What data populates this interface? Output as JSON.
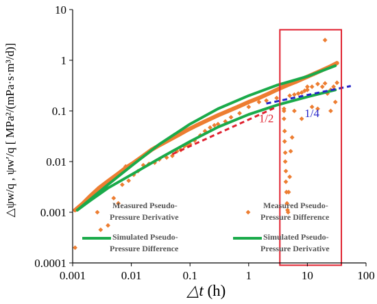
{
  "chart_data": {
    "type": "scatter",
    "x_axis": {
      "label_symbol": "△t",
      "label_unit": " (h)",
      "scale": "log",
      "range": [
        0.001,
        100
      ],
      "tick_labels": [
        "0.001",
        "0.01",
        "0.1",
        "1",
        "10",
        "100"
      ]
    },
    "y_axis": {
      "label": "△ψw/q , ψw′/q [ MPa²/(mPa·s·m³/d)]",
      "scale": "log",
      "range": [
        0.0001,
        10
      ],
      "tick_labels": [
        "0.0001",
        "0.001",
        "0.01",
        "0.1",
        "1",
        "10"
      ]
    },
    "colors": {
      "measured": "#ED7D31",
      "simulated": "#1AAA4A",
      "half_slope": "#E0202E",
      "quarter_slope": "#2323C8",
      "highlight_box": "#E0202E"
    },
    "series": [
      {
        "name": "Measured Pseudo-Pressure Difference",
        "kind": "markers",
        "x": [
          0.0011,
          0.0015,
          0.002,
          0.0028,
          0.004,
          0.006,
          0.008,
          0.011,
          0.016,
          0.022,
          0.03,
          0.045,
          0.065,
          0.09,
          0.13,
          0.2,
          0.3,
          0.45,
          0.65,
          1.0,
          1.5,
          2.2,
          3.2,
          4.5,
          6.5,
          9.0,
          13.0,
          18.0,
          25.0,
          32.0
        ],
        "y": [
          0.0011,
          0.0015,
          0.0021,
          0.003,
          0.0041,
          0.0058,
          0.0075,
          0.0095,
          0.013,
          0.017,
          0.021,
          0.027,
          0.034,
          0.042,
          0.052,
          0.066,
          0.082,
          0.1,
          0.12,
          0.15,
          0.18,
          0.22,
          0.27,
          0.32,
          0.38,
          0.45,
          0.54,
          0.64,
          0.76,
          0.88
        ]
      },
      {
        "name": "Measured Pseudo-Pressure Derivative",
        "kind": "markers",
        "x": [
          0.0011,
          0.003,
          0.004,
          0.005,
          0.006,
          0.007,
          0.008,
          0.009,
          0.011,
          0.013,
          0.016,
          0.02,
          0.025,
          0.03,
          0.04,
          0.05,
          0.06,
          0.07,
          0.08,
          0.09,
          0.1,
          0.12,
          0.15,
          0.18,
          0.22,
          0.26,
          0.3,
          0.4,
          0.5,
          0.7,
          1.0,
          1.5,
          2.0,
          3.0,
          4.0,
          5.0,
          6.0,
          7.0,
          8.0,
          9.0,
          10.0,
          12.0,
          15.0,
          18.0,
          22.0,
          25.0,
          28.0,
          32.0,
          20.0,
          4.0,
          4.0,
          4.1,
          4.1,
          4.2,
          4.2,
          4.3,
          4.3,
          4.4,
          4.5,
          4.6,
          4.7,
          4.8,
          5.0,
          5.2,
          5.5,
          6.0,
          8.0,
          10.0,
          12.0,
          15.0,
          20.0,
          25.0,
          30.0
        ],
        "y": [
          0.0002,
          0.00045,
          0.00055,
          0.0019,
          0.0015,
          0.0035,
          0.008,
          0.0042,
          0.0055,
          0.0065,
          0.0085,
          0.009,
          0.0095,
          0.011,
          0.012,
          0.013,
          0.016,
          0.017,
          0.02,
          0.021,
          0.022,
          0.026,
          0.033,
          0.04,
          0.047,
          0.052,
          0.055,
          0.062,
          0.075,
          0.09,
          0.12,
          0.15,
          0.16,
          0.18,
          0.11,
          0.2,
          0.21,
          0.22,
          0.23,
          0.25,
          0.26,
          0.3,
          0.34,
          0.3,
          0.22,
          0.26,
          0.3,
          0.36,
          2.5,
          0.1,
          0.07,
          0.04,
          0.025,
          0.015,
          0.01,
          0.0065,
          0.004,
          0.0025,
          0.0015,
          0.0011,
          0.001,
          0.0025,
          0.005,
          0.016,
          0.03,
          0.1,
          0.07,
          0.3,
          0.12,
          0.11,
          0.35,
          0.1,
          0.15
        ]
      },
      {
        "name": "Simulated Pseudo-Pressure Difference",
        "kind": "line",
        "x": [
          0.0012,
          0.002,
          0.004,
          0.01,
          0.03,
          0.1,
          0.3,
          1.0,
          3.0,
          10.0,
          30.0
        ],
        "y": [
          0.0011,
          0.0018,
          0.0035,
          0.0082,
          0.022,
          0.055,
          0.11,
          0.2,
          0.32,
          0.48,
          0.78
        ]
      },
      {
        "name": "Simulated Pseudo-Pressure Derivative",
        "kind": "line",
        "x": [
          0.0012,
          0.002,
          0.004,
          0.01,
          0.03,
          0.1,
          0.3,
          1.0,
          3.0,
          10.0,
          30.0
        ],
        "y": [
          0.0011,
          0.0017,
          0.003,
          0.0055,
          0.0115,
          0.025,
          0.048,
          0.085,
          0.13,
          0.19,
          0.26
        ]
      }
    ],
    "reference_lines": [
      {
        "label": "1/2",
        "x": [
          0.05,
          3.0
        ],
        "y": [
          0.014,
          0.12
        ],
        "label_at": [
          2.0,
          0.06
        ]
      },
      {
        "label": "1/4",
        "x": [
          2.0,
          55.0
        ],
        "y": [
          0.14,
          0.31
        ],
        "label_at": [
          12.0,
          0.075
        ]
      }
    ],
    "highlight_box": {
      "x": [
        3.4,
        38.0
      ],
      "y": [
        9e-05,
        4.0
      ]
    },
    "legend": {
      "placement": "bottom, inside plot area",
      "entries": [
        {
          "series": 1,
          "text": [
            "Measured Pseudo-",
            "Pressure Derivative"
          ]
        },
        {
          "series": 0,
          "text": [
            "Measured Pseudo-",
            "Pressure Difference"
          ]
        },
        {
          "series": 2,
          "text": [
            "Simulated Pseudo-",
            "Pressure Difference"
          ]
        },
        {
          "series": 3,
          "text": [
            "Simulated Pseudo-",
            "Pressure Derivative"
          ]
        }
      ]
    }
  }
}
